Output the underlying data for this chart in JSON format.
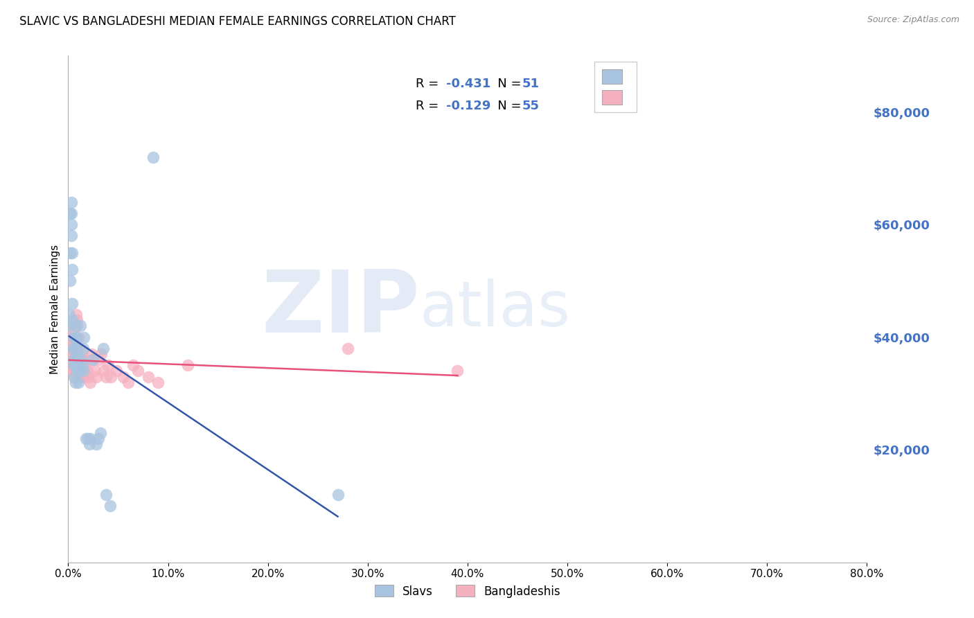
{
  "title": "SLAVIC VS BANGLADESHI MEDIAN FEMALE EARNINGS CORRELATION CHART",
  "source": "Source: ZipAtlas.com",
  "ylabel": "Median Female Earnings",
  "right_ytick_values": [
    20000,
    40000,
    60000,
    80000
  ],
  "right_ytick_labels": [
    "$20,000",
    "$40,000",
    "$60,000",
    "$80,000"
  ],
  "ylim_min": 0,
  "ylim_max": 90000,
  "xlim_min": 0.0,
  "xlim_max": 0.8,
  "slavs_color": "#A8C4E0",
  "bangladeshis_color": "#F5B0C0",
  "slavs_line_color": "#3355AA",
  "bangladeshis_line_color": "#E8507A",
  "background_color": "#FFFFFF",
  "grid_color": "#CCCCCC",
  "right_label_color": "#4472C4",
  "legend_text_color": "#4472C4",
  "watermark_color": "#D0DCF0",
  "slavs_R": "-0.431",
  "slavs_N": "51",
  "bangladeshis_R": "-0.129",
  "bangladeshis_N": "55",
  "slavs_x": [
    0.001,
    0.001,
    0.002,
    0.002,
    0.002,
    0.003,
    0.003,
    0.003,
    0.003,
    0.004,
    0.004,
    0.004,
    0.004,
    0.005,
    0.005,
    0.005,
    0.005,
    0.006,
    0.006,
    0.006,
    0.007,
    0.007,
    0.007,
    0.008,
    0.008,
    0.008,
    0.009,
    0.009,
    0.01,
    0.01,
    0.01,
    0.011,
    0.012,
    0.013,
    0.014,
    0.015,
    0.015,
    0.016,
    0.018,
    0.02,
    0.021,
    0.022,
    0.025,
    0.028,
    0.03,
    0.032,
    0.035,
    0.038,
    0.042,
    0.085,
    0.27
  ],
  "slavs_y": [
    42000,
    44000,
    55000,
    50000,
    62000,
    58000,
    64000,
    60000,
    62000,
    55000,
    52000,
    46000,
    43000,
    40000,
    38000,
    36000,
    38000,
    35000,
    33000,
    35000,
    32000,
    42000,
    40000,
    38000,
    37000,
    40000,
    38000,
    36000,
    35000,
    34000,
    32000,
    34000,
    42000,
    36000,
    35000,
    38000,
    34000,
    40000,
    22000,
    22000,
    21000,
    22000,
    36000,
    21000,
    22000,
    23000,
    38000,
    12000,
    10000,
    72000,
    12000
  ],
  "bangladeshis_x": [
    0.001,
    0.002,
    0.002,
    0.003,
    0.003,
    0.003,
    0.004,
    0.004,
    0.004,
    0.005,
    0.005,
    0.006,
    0.006,
    0.006,
    0.007,
    0.007,
    0.008,
    0.008,
    0.009,
    0.009,
    0.01,
    0.01,
    0.011,
    0.011,
    0.012,
    0.012,
    0.013,
    0.014,
    0.015,
    0.016,
    0.017,
    0.018,
    0.019,
    0.02,
    0.022,
    0.023,
    0.025,
    0.027,
    0.028,
    0.03,
    0.033,
    0.036,
    0.038,
    0.04,
    0.043,
    0.048,
    0.055,
    0.06,
    0.065,
    0.07,
    0.08,
    0.09,
    0.12,
    0.28,
    0.39
  ],
  "bangladeshis_y": [
    40000,
    38000,
    41000,
    39000,
    36000,
    38000,
    37000,
    35000,
    34000,
    36000,
    35000,
    34000,
    33000,
    35000,
    34000,
    38000,
    36000,
    44000,
    43000,
    42000,
    40000,
    38000,
    36000,
    35000,
    33000,
    36000,
    35000,
    37000,
    34000,
    33000,
    35000,
    36000,
    34000,
    33000,
    32000,
    37000,
    36000,
    34000,
    33000,
    36000,
    37000,
    34000,
    33000,
    35000,
    33000,
    34000,
    33000,
    32000,
    35000,
    34000,
    33000,
    32000,
    35000,
    38000,
    34000
  ]
}
